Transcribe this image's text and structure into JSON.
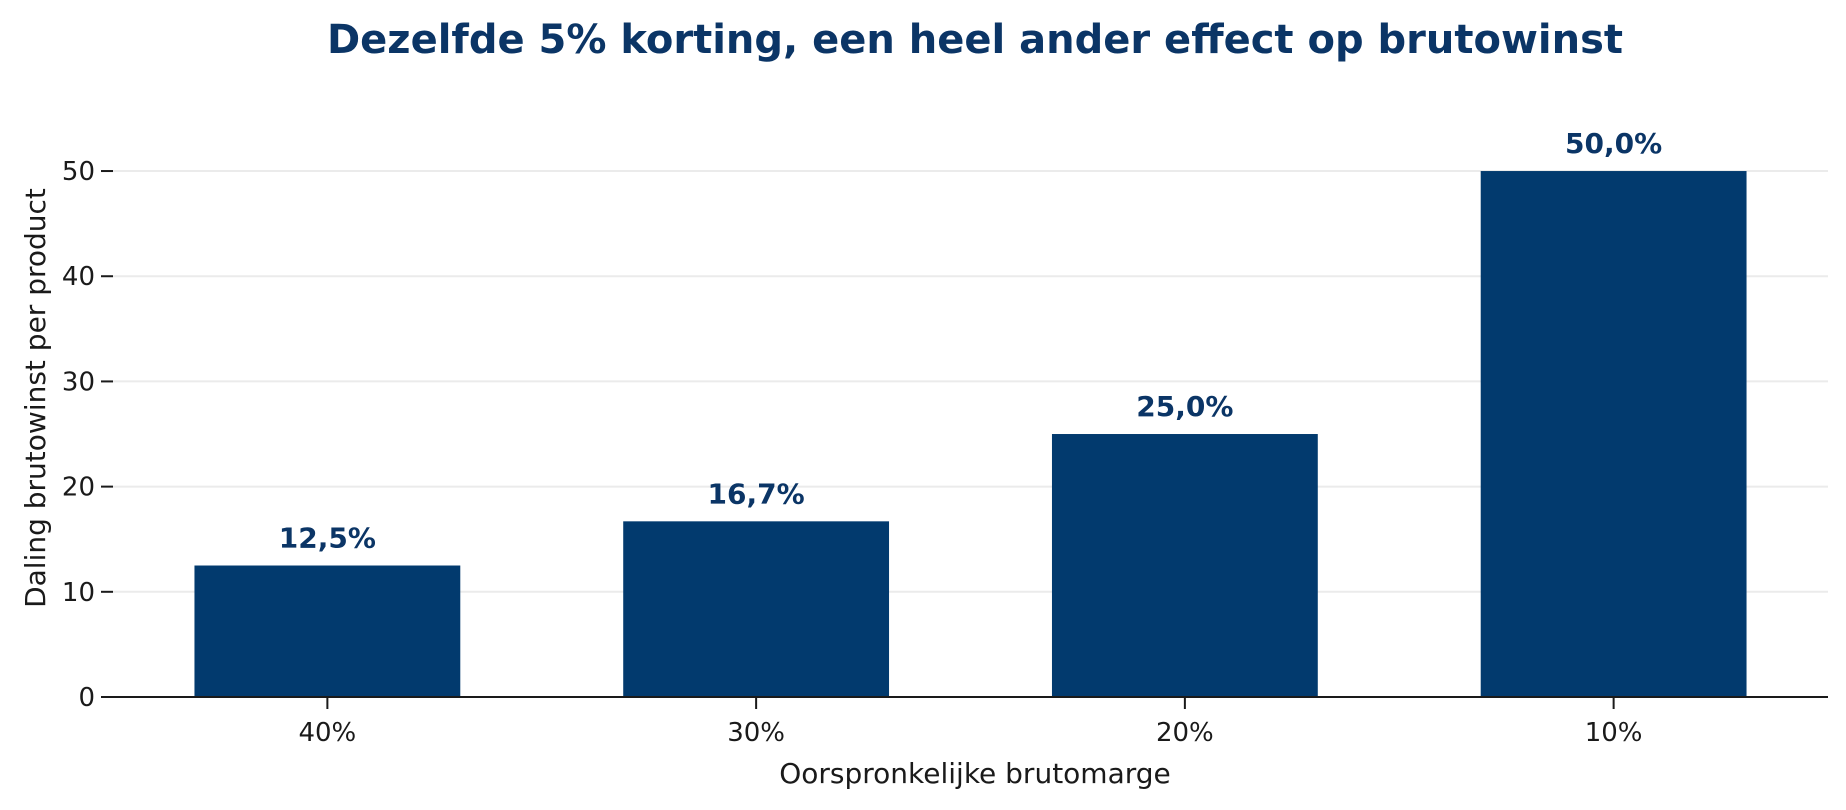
{
  "chart_data": {
    "type": "bar",
    "title": "Dezelfde 5% korting, een heel ander effect op brutowinst",
    "xlabel": "Oorspronkelijke brutomarge",
    "ylabel": "Daling brutowinst per product",
    "categories": [
      "40%",
      "30%",
      "20%",
      "10%"
    ],
    "values": [
      12.5,
      16.7,
      25.0,
      50.0
    ],
    "data_labels": [
      "12,5%",
      "16,7%",
      "25,0%",
      "50,0%"
    ],
    "ylim": [
      0,
      52
    ],
    "yticks": [
      0,
      10,
      20,
      30,
      40,
      50
    ],
    "grid": "horizontal",
    "legend": "none",
    "colors": {
      "bar": "#023a6e",
      "title": "#0b3566",
      "grid": "#ebebeb",
      "axis": "#1a1a1a"
    }
  }
}
